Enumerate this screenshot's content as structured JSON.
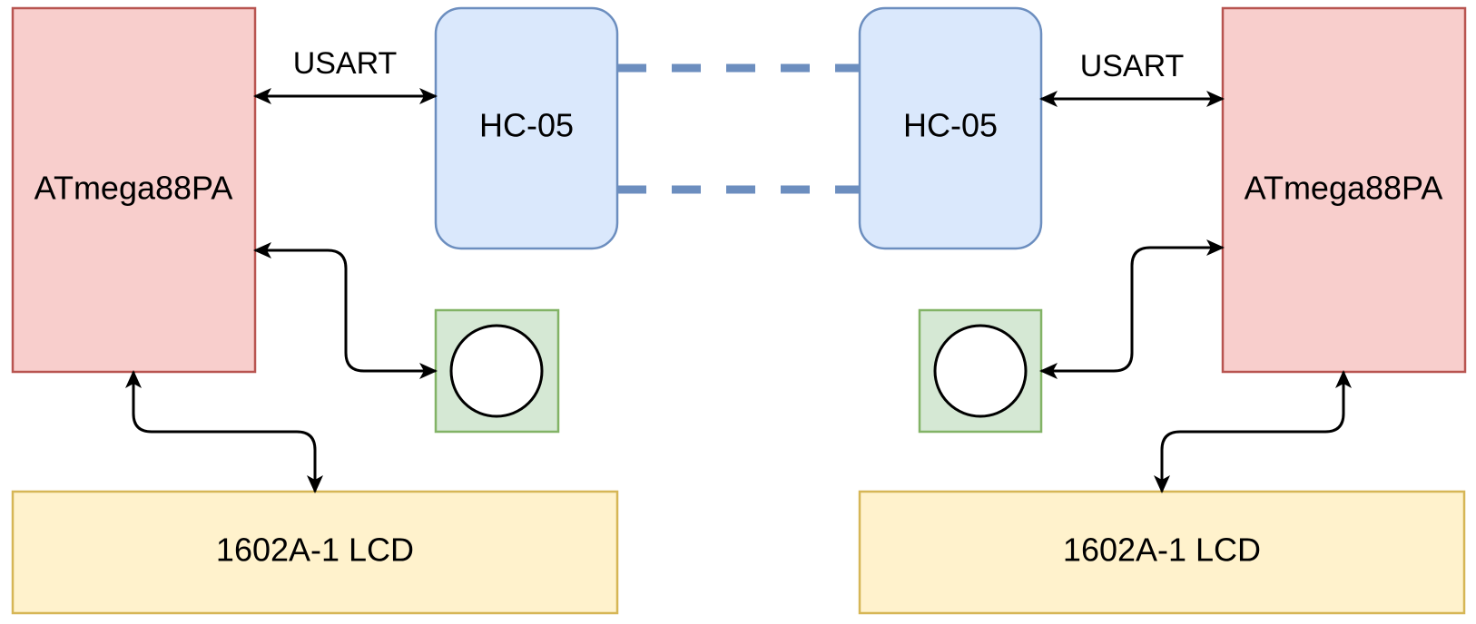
{
  "nodes": {
    "mcu_left": {
      "label": "ATmega88PA",
      "fill": "#f8cecc",
      "stroke": "#b85450"
    },
    "mcu_right": {
      "label": "ATmega88PA",
      "fill": "#f8cecc",
      "stroke": "#b85450"
    },
    "bt_left": {
      "label": "HC-05",
      "fill": "#dae8fc",
      "stroke": "#6c8ebf"
    },
    "bt_right": {
      "label": "HC-05",
      "fill": "#dae8fc",
      "stroke": "#6c8ebf"
    },
    "lcd_left": {
      "label": "1602A-1 LCD",
      "fill": "#fff2cc",
      "stroke": "#d6b656"
    },
    "lcd_right": {
      "label": "1602A-1 LCD",
      "fill": "#fff2cc",
      "stroke": "#d6b656"
    },
    "button_left": {
      "label": "",
      "fill": "#d5e8d4",
      "stroke": "#82b366"
    },
    "button_right": {
      "label": "",
      "fill": "#d5e8d4",
      "stroke": "#82b366"
    }
  },
  "edges": {
    "usart_left": {
      "label": "USART"
    },
    "usart_right": {
      "label": "USART"
    },
    "wireless_link": {
      "style": "dashed",
      "color": "#6c8ebf"
    }
  }
}
